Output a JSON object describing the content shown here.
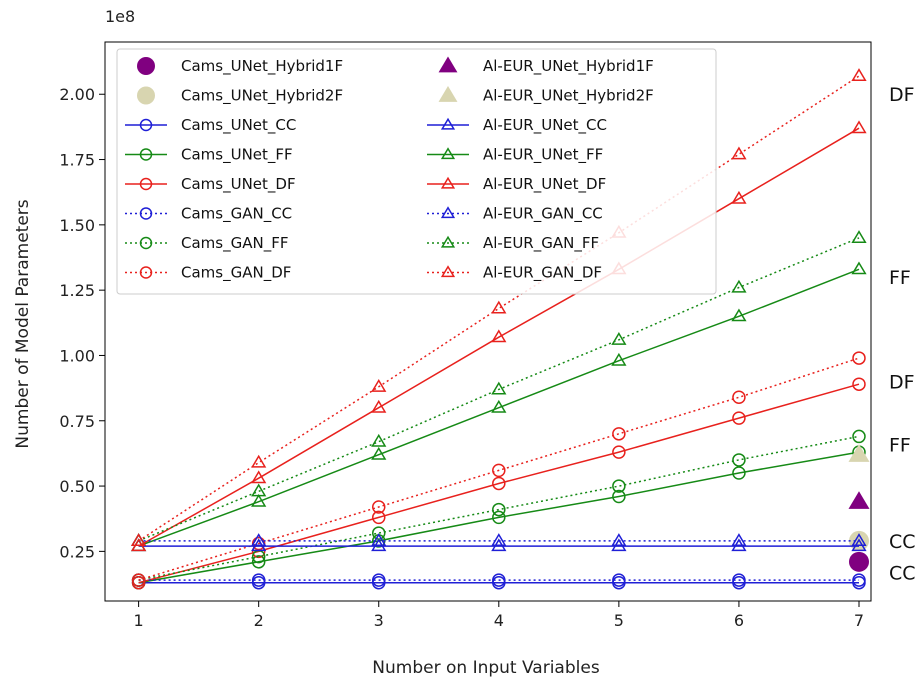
{
  "chart_data": {
    "type": "line",
    "xlabel": "Number on Input Variables",
    "ylabel": "Number of Model Parameters",
    "offset_text": "1e8",
    "xlim": [
      0.72,
      7.1
    ],
    "ylim": [
      0.06,
      2.2
    ],
    "x_ticks": [
      1,
      2,
      3,
      4,
      5,
      6,
      7
    ],
    "y_ticks": [
      0.25,
      0.5,
      0.75,
      1.0,
      1.25,
      1.5,
      1.75,
      2.0
    ],
    "y_tick_labels": [
      "0.25",
      "0.50",
      "0.75",
      "1.00",
      "1.25",
      "1.50",
      "1.75",
      "2.00"
    ],
    "legend_position": "upper-left",
    "series": [
      {
        "name": "Cams_UNet_Hybrid1F",
        "kind": "single",
        "marker": "circle",
        "filled": true,
        "color": "#800080",
        "x": [
          7
        ],
        "y": [
          0.21
        ]
      },
      {
        "name": "Cams_UNet_Hybrid2F",
        "kind": "single",
        "marker": "circle",
        "filled": true,
        "color": "#d8d5b0",
        "x": [
          7
        ],
        "y": [
          0.29
        ]
      },
      {
        "name": "Cams_UNet_CC",
        "kind": "line",
        "marker": "circle",
        "dash": "solid",
        "color": "#1f1fd6",
        "x": [
          1,
          2,
          3,
          4,
          5,
          6,
          7
        ],
        "y": [
          0.13,
          0.13,
          0.13,
          0.13,
          0.13,
          0.13,
          0.13
        ]
      },
      {
        "name": "Cams_UNet_FF",
        "kind": "line",
        "marker": "circle",
        "dash": "solid",
        "color": "#168a16",
        "x": [
          1,
          2,
          3,
          4,
          5,
          6,
          7
        ],
        "y": [
          0.13,
          0.21,
          0.29,
          0.38,
          0.46,
          0.55,
          0.63
        ]
      },
      {
        "name": "Cams_UNet_DF",
        "kind": "line",
        "marker": "circle",
        "dash": "solid",
        "color": "#e8211d",
        "x": [
          1,
          2,
          3,
          4,
          5,
          6,
          7
        ],
        "y": [
          0.13,
          0.25,
          0.38,
          0.51,
          0.63,
          0.76,
          0.89
        ]
      },
      {
        "name": "Cams_GAN_CC",
        "kind": "line",
        "marker": "circle",
        "dash": "dotted",
        "color": "#1f1fd6",
        "x": [
          1,
          2,
          3,
          4,
          5,
          6,
          7
        ],
        "y": [
          0.14,
          0.14,
          0.14,
          0.14,
          0.14,
          0.14,
          0.14
        ]
      },
      {
        "name": "Cams_GAN_FF",
        "kind": "line",
        "marker": "circle",
        "dash": "dotted",
        "color": "#168a16",
        "x": [
          1,
          2,
          3,
          4,
          5,
          6,
          7
        ],
        "y": [
          0.14,
          0.23,
          0.32,
          0.41,
          0.5,
          0.6,
          0.69
        ]
      },
      {
        "name": "Cams_GAN_DF",
        "kind": "line",
        "marker": "circle",
        "dash": "dotted",
        "color": "#e8211d",
        "x": [
          1,
          2,
          3,
          4,
          5,
          6,
          7
        ],
        "y": [
          0.14,
          0.28,
          0.42,
          0.56,
          0.7,
          0.84,
          0.99
        ]
      },
      {
        "name": "Al-EUR_UNet_Hybrid1F",
        "kind": "single",
        "marker": "triangle",
        "filled": true,
        "color": "#800080",
        "x": [
          7
        ],
        "y": [
          0.44
        ]
      },
      {
        "name": "Al-EUR_UNet_Hybrid2F",
        "kind": "single",
        "marker": "triangle",
        "filled": true,
        "color": "#d8d5b0",
        "x": [
          7
        ],
        "y": [
          0.62
        ]
      },
      {
        "name": "Al-EUR_UNet_CC",
        "kind": "line",
        "marker": "triangle",
        "dash": "solid",
        "color": "#1f1fd6",
        "x": [
          1,
          2,
          3,
          4,
          5,
          6,
          7
        ],
        "y": [
          0.27,
          0.27,
          0.27,
          0.27,
          0.27,
          0.27,
          0.27
        ]
      },
      {
        "name": "Al-EUR_UNet_FF",
        "kind": "line",
        "marker": "triangle",
        "dash": "solid",
        "color": "#168a16",
        "x": [
          1,
          2,
          3,
          4,
          5,
          6,
          7
        ],
        "y": [
          0.27,
          0.44,
          0.62,
          0.8,
          0.98,
          1.15,
          1.33
        ]
      },
      {
        "name": "Al-EUR_UNet_DF",
        "kind": "line",
        "marker": "triangle",
        "dash": "solid",
        "color": "#e8211d",
        "x": [
          1,
          2,
          3,
          4,
          5,
          6,
          7
        ],
        "y": [
          0.27,
          0.53,
          0.8,
          1.07,
          1.33,
          1.6,
          1.87
        ]
      },
      {
        "name": "Al-EUR_GAN_CC",
        "kind": "line",
        "marker": "triangle",
        "dash": "dotted",
        "color": "#1f1fd6",
        "x": [
          1,
          2,
          3,
          4,
          5,
          6,
          7
        ],
        "y": [
          0.29,
          0.29,
          0.29,
          0.29,
          0.29,
          0.29,
          0.29
        ]
      },
      {
        "name": "Al-EUR_GAN_FF",
        "kind": "line",
        "marker": "triangle",
        "dash": "dotted",
        "color": "#168a16",
        "x": [
          1,
          2,
          3,
          4,
          5,
          6,
          7
        ],
        "y": [
          0.29,
          0.48,
          0.67,
          0.87,
          1.06,
          1.26,
          1.45
        ]
      },
      {
        "name": "Al-EUR_GAN_DF",
        "kind": "line",
        "marker": "triangle",
        "dash": "dotted",
        "color": "#e8211d",
        "x": [
          1,
          2,
          3,
          4,
          5,
          6,
          7
        ],
        "y": [
          0.29,
          0.59,
          0.88,
          1.18,
          1.47,
          1.77,
          2.07
        ]
      }
    ],
    "annotations": [
      {
        "text": "DF",
        "y": 2.0
      },
      {
        "text": "FF",
        "y": 1.3
      },
      {
        "text": "DF",
        "y": 0.9
      },
      {
        "text": "FF",
        "y": 0.66
      },
      {
        "text": "CC",
        "y": 0.29
      },
      {
        "text": "CC",
        "y": 0.17
      }
    ]
  }
}
